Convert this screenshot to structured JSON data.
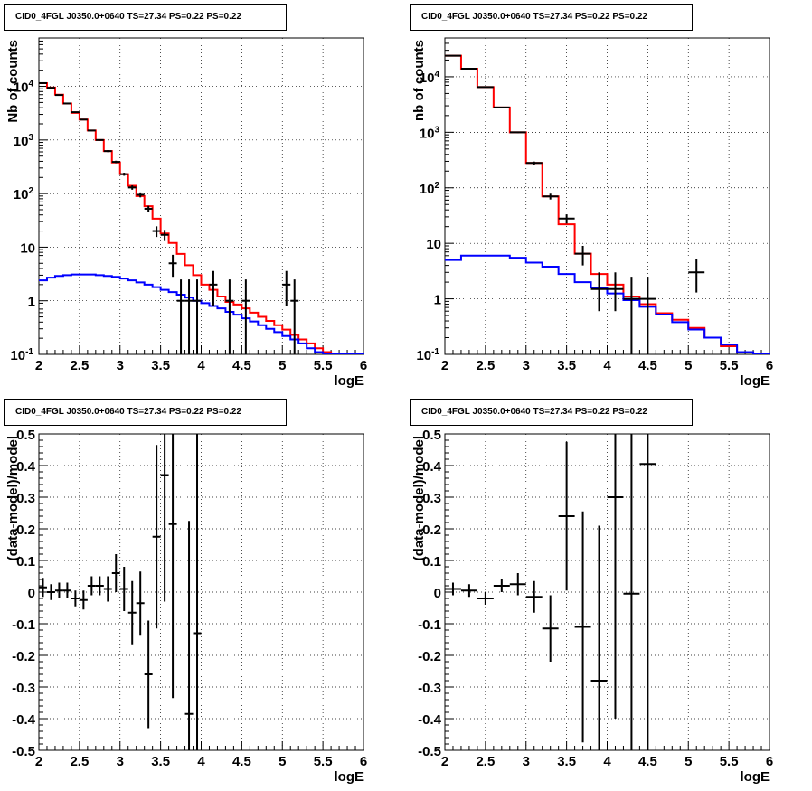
{
  "panels_title": "CID0_4FGL J0350.0+0640 TS=27.34 PS=0.22 PS=0.22",
  "chart_data": [
    {
      "type": "line",
      "scale": "log-y",
      "title": "CID0_4FGL J0350.0+0640 TS=27.34 PS=0.22 PS=0.22",
      "xlabel": "logE",
      "ylabel": "Nb of counts",
      "xlim": [
        2,
        6
      ],
      "ylim": [
        0.1,
        80000
      ],
      "x_ticks": [
        "2",
        "2.5",
        "3",
        "3.5",
        "4",
        "4.5",
        "5",
        "5.5",
        "6"
      ],
      "y_ticks": [
        "10^-1",
        "1",
        "10",
        "10^2",
        "10^3",
        "10^4"
      ],
      "grid": true,
      "bin_width": 0.1,
      "series": [
        {
          "color": "#ff0000",
          "style": "step",
          "x": [
            2.0,
            2.1,
            2.2,
            2.3,
            2.4,
            2.5,
            2.6,
            2.7,
            2.8,
            2.9,
            3.0,
            3.1,
            3.2,
            3.3,
            3.4,
            3.5,
            3.6,
            3.7,
            3.8,
            3.9,
            4.0,
            4.1,
            4.2,
            4.3,
            4.4,
            4.5,
            4.6,
            4.7,
            4.8,
            4.9,
            5.0,
            5.1,
            5.2,
            5.3,
            5.4,
            5.5,
            5.6,
            5.7,
            5.8,
            5.9
          ],
          "values": [
            11500,
            9500,
            7000,
            4800,
            3200,
            2400,
            1500,
            1000,
            620,
            380,
            230,
            140,
            90,
            58,
            34,
            18,
            12,
            7.5,
            4.6,
            3.0,
            2.0,
            1.6,
            1.2,
            0.95,
            0.85,
            0.72,
            0.6,
            0.5,
            0.42,
            0.35,
            0.29,
            0.23,
            0.19,
            0.16,
            0.13,
            0.11,
            0.1,
            0.1,
            0.1,
            0.1
          ]
        },
        {
          "color": "#0000ff",
          "style": "step",
          "x": [
            2.0,
            2.1,
            2.2,
            2.3,
            2.4,
            2.5,
            2.6,
            2.7,
            2.8,
            2.9,
            3.0,
            3.1,
            3.2,
            3.3,
            3.4,
            3.5,
            3.6,
            3.7,
            3.8,
            3.9,
            4.0,
            4.1,
            4.2,
            4.3,
            4.4,
            4.5,
            4.6,
            4.7,
            4.8,
            4.9,
            5.0,
            5.1,
            5.2,
            5.3,
            5.4,
            5.5,
            5.6,
            5.7,
            5.8,
            5.9
          ],
          "values": [
            2.4,
            2.7,
            2.9,
            3.0,
            3.1,
            3.1,
            3.1,
            3.0,
            2.9,
            2.8,
            2.6,
            2.4,
            2.2,
            2.0,
            1.8,
            1.6,
            1.45,
            1.3,
            1.15,
            1.0,
            0.9,
            0.8,
            0.72,
            0.62,
            0.55,
            0.47,
            0.41,
            0.35,
            0.3,
            0.26,
            0.22,
            0.19,
            0.16,
            0.13,
            0.11,
            0.1,
            0.1,
            0.1,
            0.1,
            0.1
          ]
        },
        {
          "color": "#000000",
          "style": "errorbar",
          "x": [
            2.05,
            2.15,
            2.25,
            2.35,
            2.45,
            2.55,
            2.65,
            2.75,
            2.85,
            2.95,
            3.05,
            3.15,
            3.25,
            3.35,
            3.45,
            3.55,
            3.65,
            3.75,
            3.85,
            3.95,
            4.15,
            4.35,
            4.55,
            5.05,
            5.15
          ],
          "values": [
            11500,
            9400,
            6900,
            4800,
            3300,
            2400,
            1500,
            1000,
            620,
            390,
            230,
            130,
            95,
            52,
            20,
            17,
            5,
            1,
            1,
            1,
            2,
            1,
            1,
            2,
            1
          ],
          "err_low": [
            110,
            100,
            80,
            70,
            60,
            50,
            40,
            32,
            25,
            20,
            15,
            12,
            10,
            7,
            4.5,
            4,
            2.2,
            0.9,
            0.9,
            0.9,
            1.2,
            0.9,
            0.9,
            1.2,
            0.9
          ],
          "err_high": [
            110,
            100,
            80,
            70,
            60,
            50,
            40,
            32,
            25,
            20,
            15,
            12,
            10,
            7,
            4.5,
            4,
            2.2,
            1.5,
            1.5,
            1.5,
            1.6,
            1.5,
            1.5,
            1.6,
            1.5
          ]
        }
      ]
    },
    {
      "type": "line",
      "scale": "log-y",
      "title": "CID0_4FGL J0350.0+0640 TS=27.34 PS=0.22 PS=0.22",
      "xlabel": "logE",
      "ylabel": "nb of counts",
      "xlim": [
        2,
        6
      ],
      "ylim": [
        0.1,
        50000
      ],
      "x_ticks": [
        "2",
        "2.5",
        "3",
        "3.5",
        "4",
        "4.5",
        "5",
        "5.5",
        "6"
      ],
      "y_ticks": [
        "10^-1",
        "1",
        "10",
        "10^2",
        "10^3",
        "10^4"
      ],
      "grid": true,
      "bin_width": 0.2,
      "series": [
        {
          "color": "#ff0000",
          "style": "step",
          "x": [
            2.0,
            2.2,
            2.4,
            2.6,
            2.8,
            3.0,
            3.2,
            3.4,
            3.6,
            3.8,
            4.0,
            4.2,
            4.4,
            4.6,
            4.8,
            5.0,
            5.2,
            5.4,
            5.6,
            5.8
          ],
          "values": [
            24000,
            14000,
            6500,
            2800,
            1000,
            280,
            70,
            22,
            6.5,
            2.8,
            1.8,
            1.1,
            0.8,
            0.55,
            0.42,
            0.3,
            0.2,
            0.14,
            0.11,
            0.1
          ]
        },
        {
          "color": "#0000ff",
          "style": "step",
          "x": [
            2.0,
            2.2,
            2.4,
            2.6,
            2.8,
            3.0,
            3.2,
            3.4,
            3.6,
            3.8,
            4.0,
            4.2,
            4.4,
            4.6,
            4.8,
            5.0,
            5.2,
            5.4,
            5.6,
            5.8
          ],
          "values": [
            5.0,
            6.0,
            6.0,
            6.0,
            5.5,
            4.5,
            3.8,
            2.8,
            2.0,
            1.6,
            1.25,
            0.95,
            0.72,
            0.52,
            0.38,
            0.28,
            0.2,
            0.15,
            0.11,
            0.1
          ]
        },
        {
          "color": "#000000",
          "style": "errorbar",
          "x": [
            2.1,
            2.3,
            2.5,
            2.7,
            2.9,
            3.1,
            3.3,
            3.5,
            3.7,
            3.9,
            4.1,
            4.3,
            4.5,
            5.1
          ],
          "values": [
            24000,
            14000,
            6500,
            2800,
            1000,
            280,
            70,
            28,
            6.5,
            1.5,
            1.5,
            1,
            1,
            3
          ],
          "err_low": [
            150,
            120,
            80,
            53,
            32,
            17,
            8.4,
            5.3,
            2.5,
            0.9,
            0.9,
            0.9,
            0.9,
            1.7
          ],
          "err_high": [
            150,
            120,
            80,
            53,
            32,
            17,
            8.4,
            5.3,
            2.5,
            1.5,
            1.5,
            1.5,
            1.5,
            2.2
          ]
        }
      ]
    },
    {
      "type": "scatter",
      "style": "errorbar",
      "title": "CID0_4FGL J0350.0+0640 TS=27.34 PS=0.22 PS=0.22",
      "xlabel": "logE",
      "ylabel": "(data-model)/model",
      "xlim": [
        2,
        6
      ],
      "ylim": [
        -0.5,
        0.5
      ],
      "x_ticks": [
        "2",
        "2.5",
        "3",
        "3.5",
        "4",
        "4.5",
        "5",
        "5.5",
        "6"
      ],
      "y_ticks": [
        "-0.5",
        "-0.4",
        "-0.3",
        "-0.2",
        "-0.1",
        "0",
        "0.1",
        "0.2",
        "0.3",
        "0.4",
        "0.5"
      ],
      "grid": true,
      "bin_width": 0.1,
      "series": [
        {
          "color": "#000000",
          "x": [
            2.05,
            2.15,
            2.25,
            2.35,
            2.45,
            2.55,
            2.65,
            2.75,
            2.85,
            2.95,
            3.05,
            3.15,
            3.25,
            3.35,
            3.45,
            3.55,
            3.65,
            3.85,
            3.95
          ],
          "values": [
            0.015,
            0.0,
            0.005,
            0.005,
            -0.02,
            -0.025,
            0.02,
            0.02,
            0.01,
            0.06,
            0.01,
            -0.065,
            -0.035,
            -0.26,
            0.175,
            0.37,
            0.215,
            -0.385,
            -0.13
          ],
          "err": [
            0.03,
            0.025,
            0.025,
            0.025,
            0.025,
            0.03,
            0.03,
            0.03,
            0.04,
            0.06,
            0.07,
            0.1,
            0.1,
            0.17,
            0.29,
            0.4,
            0.55,
            0.61,
            0.85
          ]
        }
      ]
    },
    {
      "type": "scatter",
      "style": "errorbar",
      "title": "CID0_4FGL J0350.0+0640 TS=27.34 PS=0.22 PS=0.22",
      "xlabel": "logE",
      "ylabel": "(data-model)/model",
      "xlim": [
        2,
        6
      ],
      "ylim": [
        -0.5,
        0.5
      ],
      "x_ticks": [
        "2",
        "2.5",
        "3",
        "3.5",
        "4",
        "4.5",
        "5",
        "5.5",
        "6"
      ],
      "y_ticks": [
        "-0.5",
        "-0.4",
        "-0.3",
        "-0.2",
        "-0.1",
        "0",
        "0.1",
        "0.2",
        "0.3",
        "0.4",
        "0.5"
      ],
      "grid": true,
      "bin_width": 0.2,
      "series": [
        {
          "color": "#000000",
          "x": [
            2.1,
            2.3,
            2.5,
            2.7,
            2.9,
            3.1,
            3.3,
            3.5,
            3.7,
            3.9,
            4.1,
            4.3,
            4.5
          ],
          "values": [
            0.01,
            0.005,
            -0.02,
            0.02,
            0.025,
            -0.015,
            -0.115,
            0.24,
            -0.11,
            -0.28,
            0.3,
            -0.005,
            0.405
          ],
          "err": [
            0.02,
            0.02,
            0.02,
            0.02,
            0.035,
            0.05,
            0.105,
            0.235,
            0.365,
            0.49,
            0.7,
            0.75,
            1.1
          ]
        }
      ]
    }
  ]
}
